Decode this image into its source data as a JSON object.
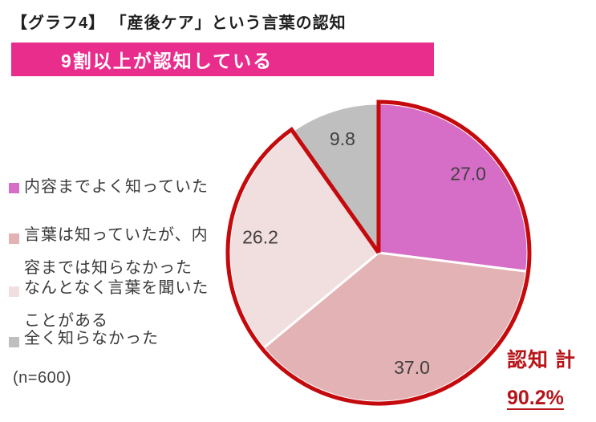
{
  "title": "【グラフ4】 「産後ケア」という言葉の認知",
  "banner": {
    "text": "9割以上が認知している",
    "bg": "#e82d8d",
    "text_color": "#ffffff"
  },
  "legend": {
    "items": [
      {
        "label": "内容までよく知っていた",
        "lines": [
          "内容までよく知っていた"
        ],
        "color": "#d66ec8"
      },
      {
        "label": "言葉は知っていたが、内容までは知らなかった",
        "lines": [
          "言葉は知っていたが、内",
          "容までは知らなかった"
        ],
        "color": "#e3b2b5"
      },
      {
        "label": "なんとなく言葉を聞いたことがある",
        "lines": [
          "なんとなく言葉を聞いた",
          "ことがある"
        ],
        "color": "#f1dede"
      },
      {
        "label": "全く知らなかった",
        "lines": [
          "全く知らなかった"
        ],
        "color": "#bfbfbf"
      }
    ]
  },
  "chart_data": {
    "type": "pie",
    "title": "「産後ケア」という言葉の認知",
    "categories": [
      "内容までよく知っていた",
      "言葉は知っていたが、内容までは知らなかった",
      "なんとなく言葉を聞いたことがある",
      "全く知らなかった"
    ],
    "values": [
      27.0,
      37.0,
      26.2,
      9.8
    ],
    "unit": "%",
    "data_labels": [
      "27.0",
      "37.0",
      "26.2",
      "9.8"
    ],
    "colors": [
      "#d66ec8",
      "#e3b2b5",
      "#f1dede",
      "#bfbfbf"
    ],
    "start_angle_deg": 0,
    "direction": "clockwise",
    "label_color": "#404040",
    "slice_border_color": "#ffffff",
    "legend_position": "left",
    "sample_size": "(n=600)",
    "highlight_group": {
      "label": "認知 計",
      "value": "90.2%",
      "segment_indexes": [
        0,
        1,
        2
      ],
      "outline_color": "#c50a0e",
      "text_color": "#b71519"
    }
  }
}
